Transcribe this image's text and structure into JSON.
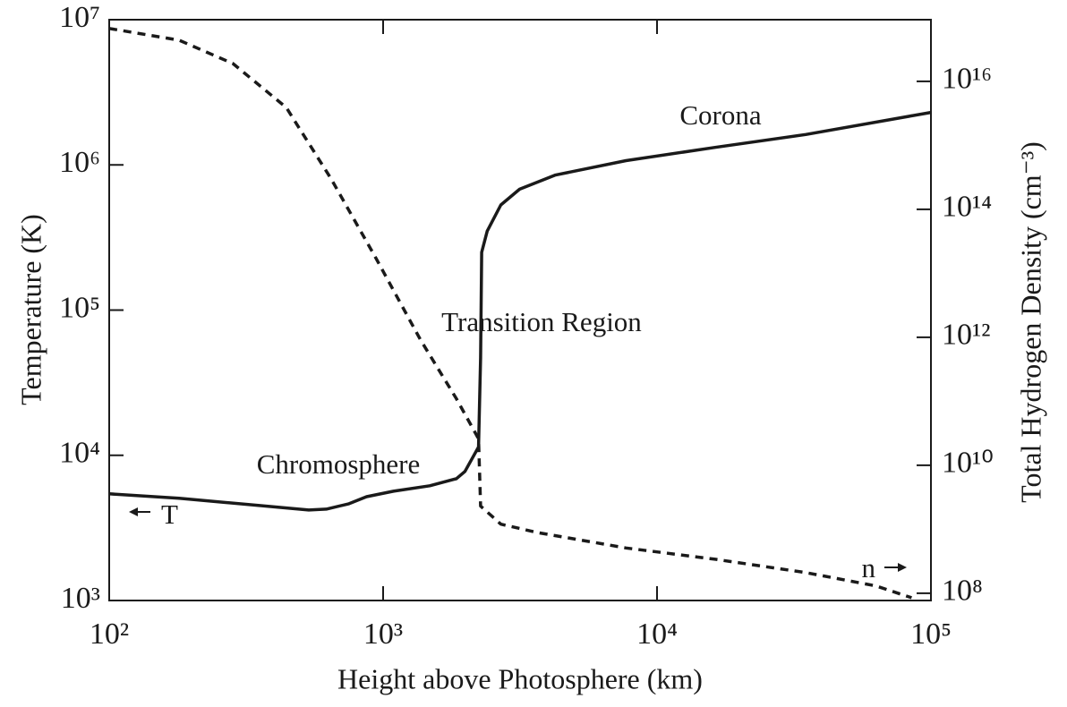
{
  "chart_data": {
    "type": "line",
    "xlabel": "Height above Photosphere (km)",
    "ylabel": "Temperature (K)",
    "y2label": "Total Hydrogen Density (cm⁻³)",
    "xscale": "log",
    "yscale": "log",
    "y2scale": "log",
    "xlim": [
      100,
      100000
    ],
    "ylim": [
      1000,
      10000000
    ],
    "y2lim": [
      77000000,
      92000000000000000
    ],
    "xticks": [
      {
        "value": 100,
        "label": "10²"
      },
      {
        "value": 1000,
        "label": "10³"
      },
      {
        "value": 10000,
        "label": "10⁴"
      },
      {
        "value": 100000,
        "label": "10⁵"
      }
    ],
    "yticks": [
      {
        "value": 1000,
        "label": "10³"
      },
      {
        "value": 10000,
        "label": "10⁴"
      },
      {
        "value": 100000,
        "label": "10⁵"
      },
      {
        "value": 1000000,
        "label": "10⁶"
      },
      {
        "value": 10000000,
        "label": "10⁷"
      }
    ],
    "y2ticks": [
      {
        "value": 100000000,
        "label": "10⁸"
      },
      {
        "value": 10000000000,
        "label": "10¹⁰"
      },
      {
        "value": 1000000000000,
        "label": "10¹²"
      },
      {
        "value": 100000000000000,
        "label": "10¹⁴"
      },
      {
        "value": 10000000000000000,
        "label": "10¹⁶"
      }
    ],
    "series": [
      {
        "name": "T",
        "color": "#1a1a1a",
        "dashed": false,
        "x": [
          100,
          180,
          354,
          535,
          620,
          750,
          870,
          1090,
          1480,
          1850,
          1990,
          2230,
          2270,
          2290,
          2400,
          2690,
          3150,
          4240,
          7700,
          16300,
          34900,
          100000
        ],
        "values": [
          5430,
          5060,
          4510,
          4200,
          4260,
          4640,
          5190,
          5660,
          6170,
          6900,
          7740,
          11400,
          47000,
          250000,
          350000,
          530000,
          680000,
          850000,
          1070000,
          1320000,
          1620000,
          2300000
        ]
      },
      {
        "name": "n",
        "color": "#1a1a1a",
        "dashed": true,
        "axis": "y2",
        "x": [
          100,
          180,
          283,
          443,
          646,
          943,
          1370,
          1850,
          2230,
          2270,
          2690,
          3650,
          7700,
          16300,
          34900,
          63000,
          85000
        ],
        "values": [
          67000000000000000,
          44000000000000000,
          19000000000000000,
          3900000000000000,
          300000000000000,
          17000000000000,
          910000000000,
          110000000000,
          26000000000,
          2300000000,
          1200000000,
          890000000,
          510000000,
          340000000,
          210000000,
          130000000,
          85000000
        ]
      }
    ],
    "annotations": [
      "Corona",
      "Transition Region",
      "Chromosphere"
    ]
  }
}
